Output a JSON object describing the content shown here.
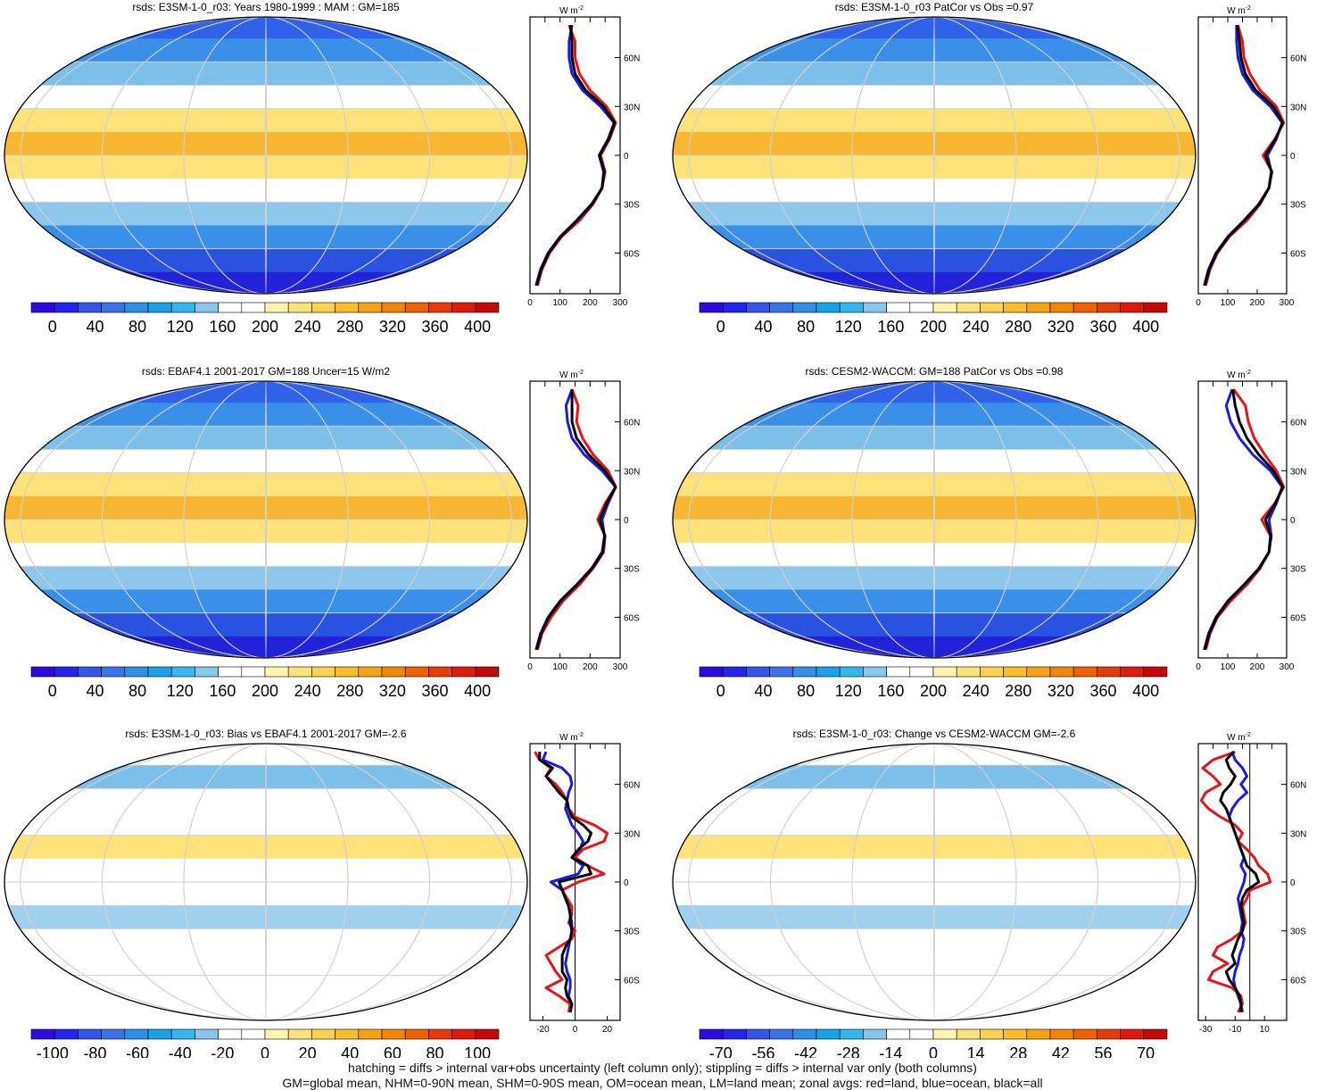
{
  "footer": {
    "line1": "hatching = diffs > internal var+obs uncertainty (left column only); stippling = diffs > internal var only (both columns)",
    "line2": "GM=global mean, NHM=0-90N mean, SHM=0-90S mean, OM=ocean mean, LM=land mean; zonal avgs: red=land, blue=ocean, black=all"
  },
  "colors": {
    "land": "#e8141a",
    "ocean": "#1a1ae6",
    "all": "#000000",
    "full_scale": [
      "#2d0be0",
      "#2525f0",
      "#3456e8",
      "#3a72e6",
      "#2f8fe6",
      "#1aa2e8",
      "#35b6ee",
      "#87c6ea",
      "#ffffff",
      "#ffffff",
      "#fff4ad",
      "#fde27a",
      "#fcd24e",
      "#f9bd2c",
      "#f5a314",
      "#f28408",
      "#ee6104",
      "#e63c08",
      "#dd1b0c",
      "#c40808"
    ],
    "diff_scale": [
      "#2d0be0",
      "#2525f0",
      "#3456e8",
      "#3a72e6",
      "#2f8fe6",
      "#1aa2e8",
      "#35b6ee",
      "#87c6ea",
      "#ffffff",
      "#ffffff",
      "#fff4ad",
      "#fde27a",
      "#fcd24e",
      "#f9bd2c",
      "#f5a314",
      "#f28408",
      "#ee6104",
      "#e63c08",
      "#dd1b0c",
      "#c40808"
    ]
  },
  "chart_data": [
    {
      "type": "heatmap",
      "panel": "top-left",
      "field": "full",
      "title": "rsds: E3SM-1-0_r03: Years 1980-1999 : MAM : GM=185",
      "colorbar": {
        "ticks": [
          "0",
          "40",
          "80",
          "120",
          "160",
          "200",
          "240",
          "280",
          "320",
          "360",
          "400"
        ],
        "range": [
          -20,
          420
        ],
        "nbins": 20
      },
      "zonal": {
        "unit": "W m",
        "unit_exp": "-2",
        "xlim": [
          0,
          300
        ],
        "xticks": [
          "0",
          "100",
          "200",
          "300"
        ],
        "yticks": [
          "60N",
          "30N",
          "0",
          "30S",
          "60S"
        ],
        "ytick_vals": [
          60,
          30,
          0,
          -30,
          -60
        ],
        "ylim": [
          -85,
          85
        ],
        "lat": [
          80,
          70,
          60,
          50,
          40,
          30,
          20,
          10,
          0,
          -10,
          -20,
          -30,
          -40,
          -50,
          -60,
          -70,
          -80
        ],
        "series": [
          {
            "name": "land",
            "values": [
              130,
              150,
              150,
              165,
              200,
              255,
              285,
              265,
              235,
              250,
              240,
              210,
              165,
              105,
              65,
              40,
              25
            ]
          },
          {
            "name": "ocean",
            "values": [
              140,
              130,
              130,
              140,
              175,
              235,
              280,
              260,
              230,
              245,
              240,
              205,
              155,
              100,
              60,
              35,
              20
            ]
          },
          {
            "name": "all",
            "values": [
              135,
              140,
              140,
              150,
              185,
              245,
              282,
              262,
              232,
              247,
              240,
              207,
              157,
              102,
              62,
              37,
              22
            ]
          }
        ]
      }
    },
    {
      "type": "heatmap",
      "panel": "top-right",
      "field": "full",
      "title": "rsds: E3SM-1-0_r03 PatCor vs Obs =0.97",
      "colorbar": {
        "ticks": [
          "0",
          "40",
          "80",
          "120",
          "160",
          "200",
          "240",
          "280",
          "320",
          "360",
          "400"
        ],
        "range": [
          -20,
          420
        ],
        "nbins": 20
      },
      "zonal": {
        "unit": "W m",
        "unit_exp": "-2",
        "xlim": [
          0,
          300
        ],
        "xticks": [
          "0",
          "100",
          "200",
          "300"
        ],
        "yticks": [
          "60N",
          "30N",
          "0",
          "30S",
          "60S"
        ],
        "ytick_vals": [
          60,
          30,
          0,
          -30,
          -60
        ],
        "ylim": [
          -85,
          85
        ],
        "lat": [
          80,
          70,
          60,
          50,
          40,
          30,
          20,
          10,
          0,
          -10,
          -20,
          -30,
          -40,
          -50,
          -60,
          -70,
          -80
        ],
        "series": [
          {
            "name": "land",
            "values": [
              135,
              150,
              155,
              175,
              210,
              265,
              290,
              260,
              220,
              250,
              240,
              210,
              165,
              105,
              65,
              40,
              25
            ]
          },
          {
            "name": "ocean",
            "values": [
              130,
              130,
              135,
              150,
              185,
              245,
              285,
              265,
              235,
              248,
              240,
              205,
              155,
              100,
              60,
              35,
              20
            ]
          },
          {
            "name": "all",
            "values": [
              132,
              140,
              145,
              160,
              195,
              255,
              287,
              262,
              228,
              249,
              240,
              207,
              157,
              102,
              62,
              37,
              22
            ]
          }
        ]
      }
    },
    {
      "type": "heatmap",
      "panel": "mid-left",
      "field": "full",
      "title": "rsds: EBAF4.1 2001-2017 GM=188 Uncer=15 W/m2",
      "colorbar": {
        "ticks": [
          "0",
          "40",
          "80",
          "120",
          "160",
          "200",
          "240",
          "280",
          "320",
          "360",
          "400"
        ],
        "range": [
          -20,
          420
        ],
        "nbins": 20
      },
      "zonal": {
        "unit": "W m",
        "unit_exp": "-2",
        "xlim": [
          0,
          300
        ],
        "xticks": [
          "0",
          "100",
          "200",
          "300"
        ],
        "yticks": [
          "60N",
          "30N",
          "0",
          "30S",
          "60S"
        ],
        "ytick_vals": [
          60,
          30,
          0,
          -30,
          -60
        ],
        "ylim": [
          -85,
          85
        ],
        "lat": [
          80,
          70,
          60,
          50,
          40,
          30,
          20,
          10,
          0,
          -10,
          -20,
          -30,
          -40,
          -50,
          -60,
          -70,
          -80
        ],
        "series": [
          {
            "name": "land",
            "values": [
              140,
              160,
              155,
              175,
              210,
              260,
              285,
              250,
              225,
              250,
              245,
              210,
              165,
              110,
              70,
              40,
              25
            ]
          },
          {
            "name": "ocean",
            "values": [
              140,
              120,
              125,
              140,
              180,
              240,
              285,
              260,
              240,
              248,
              240,
              205,
              155,
              100,
              60,
              35,
              20
            ]
          },
          {
            "name": "all",
            "values": [
              140,
              140,
              140,
              155,
              195,
              250,
              285,
              255,
              232,
              249,
              242,
              207,
              157,
              102,
              62,
              37,
              22
            ]
          }
        ]
      }
    },
    {
      "type": "heatmap",
      "panel": "mid-right",
      "field": "full",
      "title": "rsds: CESM2-WACCM: GM=188 PatCor vs Obs =0.98",
      "colorbar": {
        "ticks": [
          "0",
          "40",
          "80",
          "120",
          "160",
          "200",
          "240",
          "280",
          "320",
          "360",
          "400"
        ],
        "range": [
          -20,
          420
        ],
        "nbins": 20
      },
      "zonal": {
        "unit": "W m",
        "unit_exp": "-2",
        "xlim": [
          0,
          300
        ],
        "xticks": [
          "0",
          "100",
          "200",
          "300"
        ],
        "yticks": [
          "60N",
          "30N",
          "0",
          "30S",
          "60S"
        ],
        "ytick_vals": [
          60,
          30,
          0,
          -30,
          -60
        ],
        "ylim": [
          -85,
          85
        ],
        "lat": [
          80,
          70,
          60,
          50,
          40,
          30,
          20,
          10,
          0,
          -10,
          -20,
          -30,
          -40,
          -50,
          -60,
          -70,
          -80
        ],
        "series": [
          {
            "name": "land",
            "values": [
              120,
              160,
              170,
              190,
              225,
              265,
              290,
              260,
              215,
              245,
              240,
              210,
              165,
              110,
              65,
              40,
              25
            ]
          },
          {
            "name": "ocean",
            "values": [
              115,
              95,
              110,
              140,
              185,
              245,
              285,
              265,
              240,
              248,
              240,
              205,
              155,
              100,
              60,
              35,
              20
            ]
          },
          {
            "name": "all",
            "values": [
              117,
              125,
              140,
              165,
              205,
              255,
              287,
              262,
              228,
              246,
              240,
              207,
              157,
              102,
              62,
              37,
              22
            ]
          }
        ]
      }
    },
    {
      "type": "heatmap",
      "panel": "bottom-left",
      "field": "diff",
      "title": "rsds: E3SM-1-0_r03: Bias vs EBAF4.1 2001-2017 GM=-2.6",
      "colorbar": {
        "ticks": [
          "-100",
          "-80",
          "-60",
          "-40",
          "-20",
          "0",
          "20",
          "40",
          "60",
          "80",
          "100"
        ],
        "range": [
          -110,
          110
        ],
        "nbins": 20
      },
      "zonal": {
        "unit": "W m",
        "unit_exp": "-2",
        "xlim": [
          -28,
          28
        ],
        "xticks": [
          "-20",
          "0",
          "20"
        ],
        "xtick_vals": [
          -20,
          0,
          20
        ],
        "zero_line": true,
        "yticks": [
          "60N",
          "30N",
          "0",
          "30S",
          "60S"
        ],
        "ytick_vals": [
          60,
          30,
          0,
          -30,
          -60
        ],
        "ylim": [
          -85,
          85
        ],
        "lat": [
          80,
          75,
          70,
          65,
          60,
          55,
          50,
          45,
          40,
          35,
          30,
          25,
          20,
          15,
          10,
          5,
          0,
          -5,
          -10,
          -15,
          -20,
          -25,
          -30,
          -35,
          -40,
          -45,
          -50,
          -55,
          -60,
          -65,
          -70,
          -75,
          -80
        ],
        "series": [
          {
            "name": "land",
            "values": [
              -25,
              -22,
              -15,
              -18,
              -12,
              -8,
              -5,
              -4,
              0,
              12,
              20,
              18,
              5,
              0,
              8,
              18,
              2,
              -8,
              -5,
              -2,
              -2,
              -4,
              0,
              -2,
              -10,
              -18,
              -15,
              -12,
              -8,
              -18,
              -10,
              -3,
              -4
            ]
          },
          {
            "name": "ocean",
            "values": [
              -18,
              -20,
              -8,
              -3,
              -2,
              -4,
              -5,
              -6,
              -4,
              -2,
              2,
              5,
              3,
              -2,
              5,
              2,
              -15,
              -8,
              -6,
              -4,
              -3,
              -2,
              -2,
              -3,
              -4,
              -5,
              -6,
              -5,
              -3,
              -3,
              -4,
              -2,
              -3
            ]
          },
          {
            "name": "all",
            "values": [
              -22,
              -22,
              -14,
              -18,
              -14,
              -10,
              -5,
              -4,
              -2,
              5,
              10,
              8,
              2,
              -2,
              8,
              10,
              -10,
              -8,
              -6,
              -4,
              -3,
              -3,
              -2,
              -3,
              -6,
              -8,
              -8,
              -8,
              -5,
              -6,
              -5,
              -2,
              -3
            ]
          }
        ]
      }
    },
    {
      "type": "heatmap",
      "panel": "bottom-right",
      "field": "diff",
      "title": "rsds: E3SM-1-0_r03: Change vs CESM2-WACCM GM=-2.6",
      "colorbar": {
        "ticks": [
          "-70",
          "-56",
          "-42",
          "-28",
          "-14",
          "0",
          "14",
          "28",
          "42",
          "56",
          "70"
        ],
        "range": [
          -77,
          77
        ],
        "nbins": 20
      },
      "zonal": {
        "unit": "W m",
        "unit_exp": "-2",
        "xlim": [
          -35,
          25
        ],
        "xticks": [
          "-30",
          "-10",
          "10"
        ],
        "xtick_vals": [
          -30,
          -10,
          10
        ],
        "zero_line": true,
        "yticks": [
          "60N",
          "30N",
          "0",
          "30S",
          "60S"
        ],
        "ytick_vals": [
          60,
          30,
          0,
          -30,
          -60
        ],
        "ylim": [
          -85,
          85
        ],
        "lat": [
          80,
          75,
          70,
          65,
          60,
          55,
          50,
          45,
          40,
          35,
          30,
          25,
          20,
          15,
          10,
          5,
          0,
          -5,
          -10,
          -15,
          -20,
          -25,
          -30,
          -35,
          -40,
          -45,
          -50,
          -55,
          -60,
          -65,
          -70,
          -75,
          -80
        ],
        "series": [
          {
            "name": "land",
            "values": [
              -10,
              -25,
              -32,
              -25,
              -20,
              -30,
              -33,
              -28,
              -20,
              -10,
              -5,
              -8,
              -2,
              3,
              6,
              12,
              14,
              0,
              -2,
              -5,
              -4,
              -3,
              -5,
              -12,
              -22,
              -25,
              -15,
              -25,
              -28,
              -12,
              -6,
              -5,
              -8
            ]
          },
          {
            "name": "ocean",
            "values": [
              -12,
              -10,
              -5,
              -2,
              -6,
              -2,
              -8,
              -12,
              -14,
              -12,
              -10,
              -8,
              -6,
              -4,
              -6,
              -3,
              -4,
              -6,
              -8,
              -7,
              -6,
              -5,
              -6,
              -4,
              -5,
              -7,
              -8,
              -10,
              -11,
              -10,
              -8,
              -6,
              -5
            ]
          },
          {
            "name": "all",
            "values": [
              -11,
              -16,
              -14,
              -10,
              -13,
              -18,
              -20,
              -16,
              -14,
              -12,
              -10,
              -8,
              -6,
              -4,
              -2,
              4,
              6,
              -2,
              -5,
              -6,
              -5,
              -4,
              -5,
              -8,
              -10,
              -12,
              -10,
              -16,
              -14,
              -10,
              -7,
              -6,
              -6
            ]
          }
        ]
      }
    }
  ]
}
